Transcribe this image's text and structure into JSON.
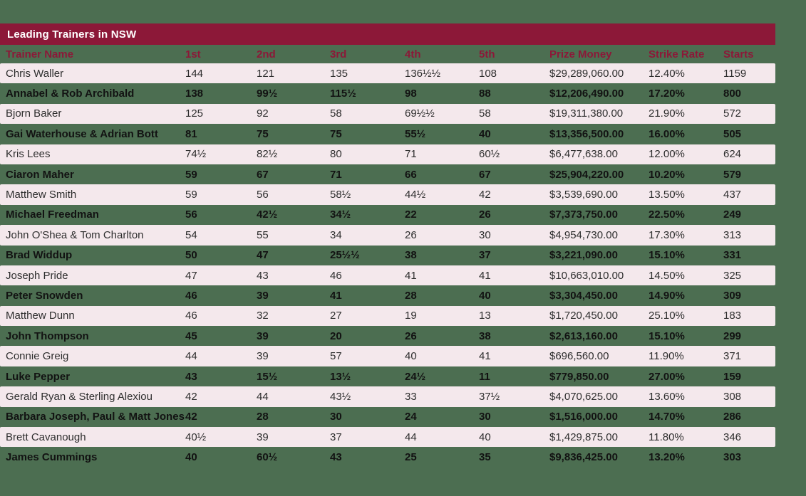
{
  "colors": {
    "background_green": "#4c6e51",
    "maroon_bar": "#8c1838",
    "row_pink": "#f4e8ec",
    "header_text": "#8c1838",
    "title_text": "#ffffff",
    "data_text": "#2e2e2e"
  },
  "chart_data": {
    "type": "table",
    "title": "Leading Trainers in NSW",
    "columns": [
      "Trainer Name",
      "1st",
      "2nd",
      "3rd",
      "4th",
      "5th",
      "Prize Money",
      "Strike Rate",
      "Starts"
    ],
    "column_keys": [
      "trainer-name",
      "first",
      "second",
      "third",
      "fourth",
      "fifth",
      "prize-money",
      "strike-rate",
      "starts"
    ],
    "rows": [
      [
        "Chris Waller",
        "144",
        "121",
        "135",
        "136½½",
        "108",
        "$29,289,060.00",
        "12.40%",
        "1159"
      ],
      [
        "Annabel & Rob Archibald",
        "138",
        "99½",
        "115½",
        "98",
        "88",
        "$12,206,490.00",
        "17.20%",
        "800"
      ],
      [
        "Bjorn Baker",
        "125",
        "92",
        "58",
        "69½½",
        "58",
        "$19,311,380.00",
        "21.90%",
        "572"
      ],
      [
        "Gai Waterhouse & Adrian Bott",
        "81",
        "75",
        "75",
        "55½",
        "40",
        "$13,356,500.00",
        "16.00%",
        "505"
      ],
      [
        "Kris Lees",
        "74½",
        "82½",
        "80",
        "71",
        "60½",
        "$6,477,638.00",
        "12.00%",
        "624"
      ],
      [
        "Ciaron Maher",
        "59",
        "67",
        "71",
        "66",
        "67",
        "$25,904,220.00",
        "10.20%",
        "579"
      ],
      [
        "Matthew Smith",
        "59",
        "56",
        "58½",
        "44½",
        "42",
        "$3,539,690.00",
        "13.50%",
        "437"
      ],
      [
        "Michael Freedman",
        "56",
        "42½",
        "34½",
        "22",
        "26",
        "$7,373,750.00",
        "22.50%",
        "249"
      ],
      [
        "John O'Shea & Tom Charlton",
        "54",
        "55",
        "34",
        "26",
        "30",
        "$4,954,730.00",
        "17.30%",
        "313"
      ],
      [
        "Brad Widdup",
        "50",
        "47",
        "25½½",
        "38",
        "37",
        "$3,221,090.00",
        "15.10%",
        "331"
      ],
      [
        "Joseph Pride",
        "47",
        "43",
        "46",
        "41",
        "41",
        "$10,663,010.00",
        "14.50%",
        "325"
      ],
      [
        "Peter Snowden",
        "46",
        "39",
        "41",
        "28",
        "40",
        "$3,304,450.00",
        "14.90%",
        "309"
      ],
      [
        "Matthew Dunn",
        "46",
        "32",
        "27",
        "19",
        "13",
        "$1,720,450.00",
        "25.10%",
        "183"
      ],
      [
        "John Thompson",
        "45",
        "39",
        "20",
        "26",
        "38",
        "$2,613,160.00",
        "15.10%",
        "299"
      ],
      [
        "Connie Greig",
        "44",
        "39",
        "57",
        "40",
        "41",
        "$696,560.00",
        "11.90%",
        "371"
      ],
      [
        "Luke Pepper",
        "43",
        "15½",
        "13½",
        "24½",
        "11",
        "$779,850.00",
        "27.00%",
        "159"
      ],
      [
        "Gerald Ryan & Sterling Alexiou",
        "42",
        "44",
        "43½",
        "33",
        "37½",
        "$4,070,625.00",
        "13.60%",
        "308"
      ],
      [
        "Barbara Joseph, Paul & Matt Jones",
        "42",
        "28",
        "30",
        "24",
        "30",
        "$1,516,000.00",
        "14.70%",
        "286"
      ],
      [
        "Brett Cavanough",
        "40½",
        "39",
        "37",
        "44",
        "40",
        "$1,429,875.00",
        "11.80%",
        "346"
      ],
      [
        "James Cummings",
        "40",
        "60½",
        "43",
        "25",
        "35",
        "$9,836,425.00",
        "13.20%",
        "303"
      ]
    ]
  }
}
